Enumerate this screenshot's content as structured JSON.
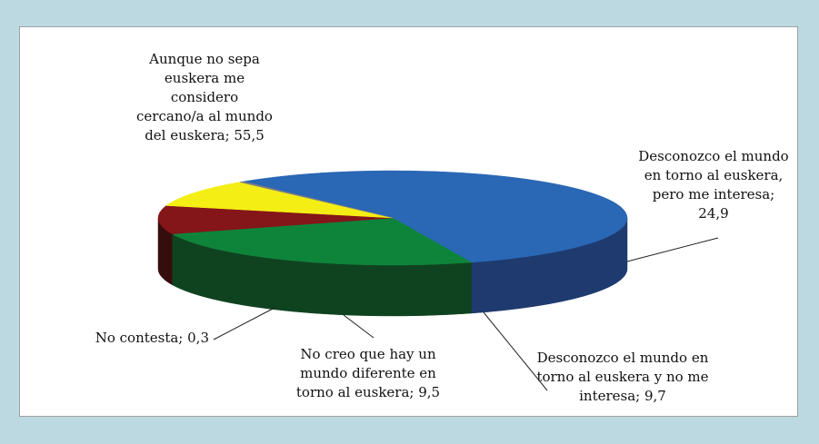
{
  "chart_data": {
    "type": "pie",
    "title": "",
    "slices": [
      {
        "label": "Aunque no sepa euskera me considero cercano/a al mundo del euskera; 55,5",
        "value": 55.5,
        "color": "#2a67b5",
        "side": "#1e3a6e"
      },
      {
        "label": "Desconozco el mundo en torno al euskera, pero me interesa; 24,9",
        "value": 24.9,
        "color": "#0e843b",
        "side": "#0f4320"
      },
      {
        "label": "Desconozco el mundo en torno al euskera y no me interesa; 9,7",
        "value": 9.7,
        "color": "#841518",
        "side": "#360d0d"
      },
      {
        "label": "No creo que hay un mundo diferente en torno al euskera; 9,5",
        "value": 9.5,
        "color": "#f5ee15",
        "side": "#828132"
      },
      {
        "label": "No contesta; 0,3",
        "value": 0.3,
        "color": "#7f7f7f",
        "side": "#1a1a1a"
      }
    ]
  }
}
